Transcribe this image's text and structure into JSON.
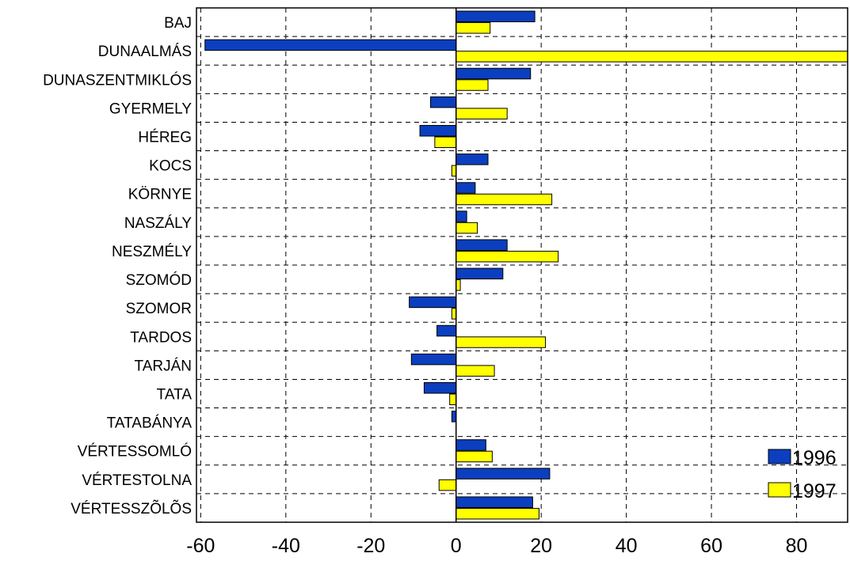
{
  "chart_data": {
    "type": "bar",
    "orientation": "horizontal",
    "categories": [
      "BAJ",
      "DUNAALMÁS",
      "DUNASZENTMIKLÓS",
      "GYERMELY",
      "HÉREG",
      "KOCS",
      "KÖRNYE",
      "NASZÁLY",
      "NESZMÉLY",
      "SZOMÓD",
      "SZOMOR",
      "TARDOS",
      "TARJÁN",
      "TATA",
      "TATABÁNYA",
      "VÉRTESSOMLÓ",
      "VÉRTESTOLNA",
      "VÉRTESSZÕLÕS"
    ],
    "series": [
      {
        "name": "1996",
        "color": "#0b3fbf",
        "values": [
          18.5,
          -59,
          17.5,
          -6,
          -8.5,
          7.5,
          4.5,
          2.5,
          12,
          11,
          -11,
          -4.5,
          -10.5,
          -7.5,
          -1,
          7,
          22,
          18
        ]
      },
      {
        "name": "1997",
        "color": "#ffff00",
        "values": [
          8,
          92,
          7.5,
          12,
          -5,
          -1,
          22.5,
          5,
          24,
          1,
          -1,
          21,
          9,
          -1.5,
          0,
          8.5,
          -4,
          19.5
        ]
      }
    ],
    "x_ticks": [
      -60,
      -40,
      -20,
      0,
      20,
      40,
      60,
      80
    ],
    "xlim": [
      -61,
      92
    ],
    "grid": true,
    "legend_position": "bottom-right",
    "title": "",
    "xlabel": "",
    "ylabel": ""
  }
}
